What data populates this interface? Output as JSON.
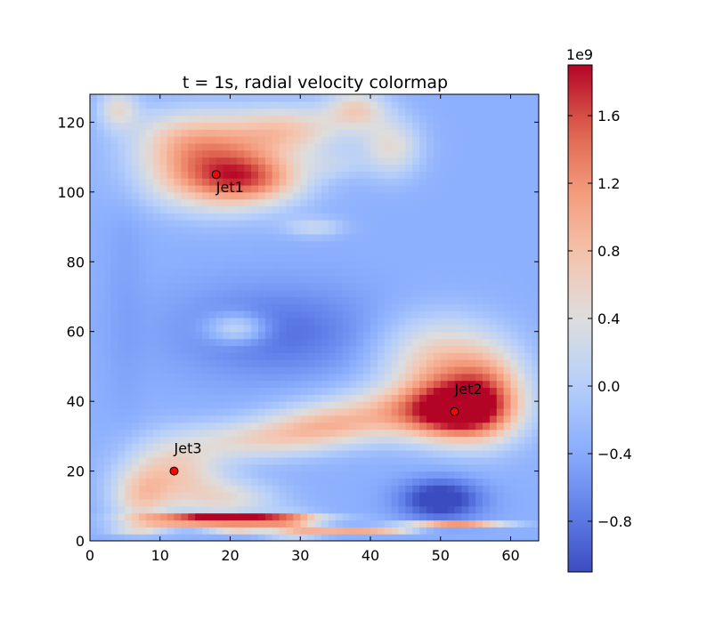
{
  "chart_data": {
    "type": "heatmap",
    "title": "t = 1s, radial velocity colormap",
    "xlabel": "",
    "ylabel": "",
    "xlim": [
      0,
      64
    ],
    "ylim": [
      0,
      128
    ],
    "x_ticks": [
      0,
      10,
      20,
      30,
      40,
      50,
      60
    ],
    "y_ticks": [
      0,
      20,
      40,
      60,
      80,
      100,
      120
    ],
    "colormap": "coolwarm",
    "colorbar": {
      "range": [
        -1.1,
        1.9
      ],
      "exponent_label": "1e9",
      "ticks": [
        -0.8,
        -0.4,
        0.0,
        0.4,
        0.8,
        1.2,
        1.6
      ],
      "tick_labels": [
        "−0.8",
        "−0.4",
        "0.0",
        "0.4",
        "0.8",
        "1.2",
        "1.6"
      ]
    },
    "points": [
      {
        "label": "Jet1",
        "x": 18,
        "y": 105,
        "color": "#ff0000"
      },
      {
        "label": "Jet2",
        "x": 52,
        "y": 37,
        "color": "#ff0000"
      },
      {
        "label": "Jet3",
        "x": 12,
        "y": 20,
        "color": "#ff0000"
      }
    ],
    "grid": false
  }
}
